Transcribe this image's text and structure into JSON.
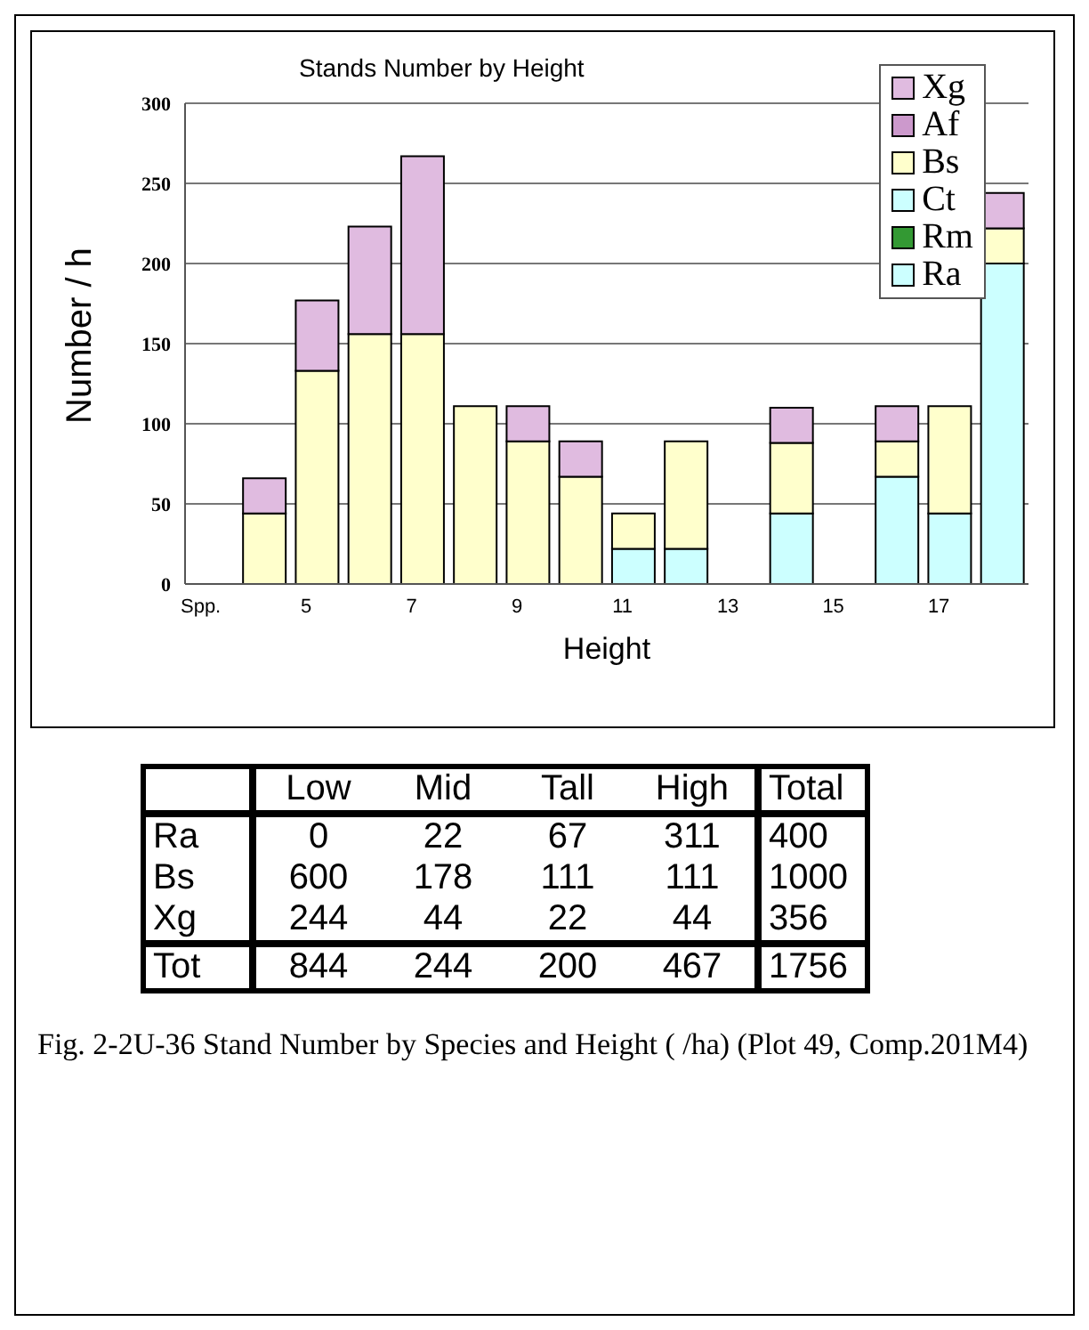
{
  "chart_data": [
    {
      "type": "bar",
      "title": "Stands Number by Height",
      "xlabel": "Height",
      "ylabel": "Number / h",
      "stacked": true,
      "categories": [
        "Spp.",
        null,
        "5",
        null,
        "7",
        null,
        "9",
        null,
        "11",
        null,
        "13",
        null,
        "15",
        null,
        "17",
        null
      ],
      "series": [
        {
          "name": "Ra",
          "color": "#ccffff",
          "values": [
            null,
            null,
            null,
            null,
            null,
            null,
            null,
            null,
            22,
            22,
            null,
            44,
            null,
            67,
            44,
            200
          ]
        },
        {
          "name": "Rm",
          "color": "#339933",
          "values": [
            null,
            null,
            null,
            null,
            null,
            null,
            null,
            null,
            null,
            null,
            null,
            null,
            null,
            null,
            null,
            null
          ]
        },
        {
          "name": "Ct",
          "color": "#ccffff",
          "values": [
            null,
            null,
            null,
            null,
            null,
            null,
            null,
            null,
            null,
            null,
            null,
            null,
            null,
            null,
            null,
            null
          ]
        },
        {
          "name": "Bs",
          "color": "#ffffcc",
          "values": [
            null,
            44,
            133,
            156,
            156,
            111,
            89,
            67,
            22,
            67,
            null,
            44,
            null,
            22,
            67,
            22
          ]
        },
        {
          "name": "Af",
          "color": "#cc99cc",
          "values": [
            null,
            null,
            null,
            null,
            null,
            null,
            null,
            null,
            null,
            null,
            null,
            null,
            null,
            null,
            null,
            null
          ]
        },
        {
          "name": "Xg",
          "color": "#e0bbe0",
          "values": [
            null,
            22,
            44,
            67,
            111,
            null,
            22,
            22,
            null,
            null,
            null,
            22,
            null,
            22,
            null,
            22
          ]
        }
      ],
      "ylim": [
        0,
        300
      ],
      "yticks": [
        0,
        50,
        100,
        150,
        200,
        250,
        300
      ],
      "grid": "y",
      "legend": "top right"
    },
    {
      "type": "heatmap",
      "categories": [
        "Low",
        "Mid",
        "Tall",
        "High",
        "Total"
      ],
      "y_categories": [
        "Ra",
        "Bs",
        "Xg",
        "Tot"
      ],
      "cells": [
        [
          0,
          22,
          67,
          311,
          400
        ],
        [
          600,
          178,
          111,
          111,
          1000
        ],
        [
          244,
          44,
          22,
          44,
          356
        ],
        [
          844,
          244,
          200,
          467,
          1756
        ]
      ],
      "data_labels": true,
      "annotations": [
        "Fig. 2-2U-36  Stand Number by Species and Height ( /ha) (Plot 49, Comp.201M4)"
      ]
    }
  ]
}
